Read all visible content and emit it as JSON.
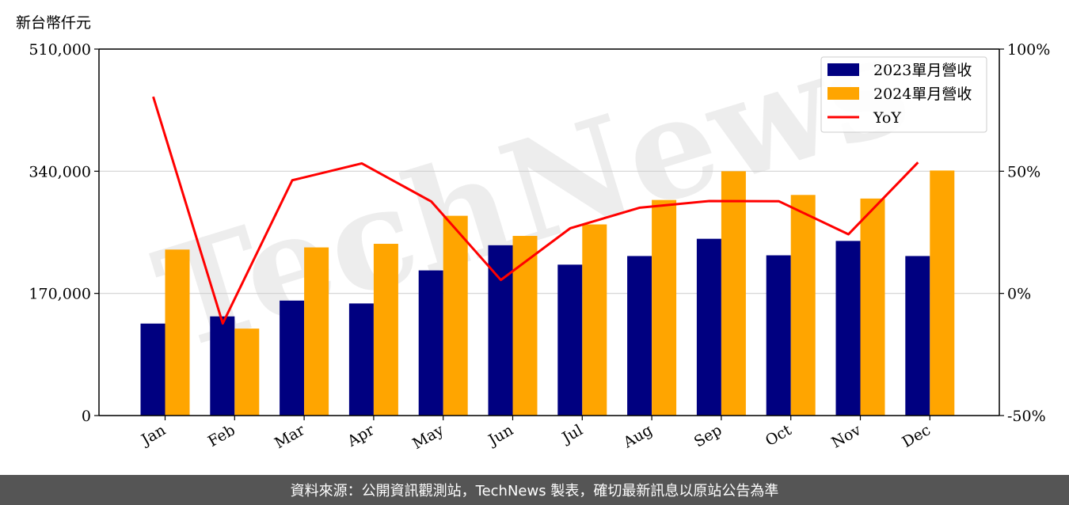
{
  "unit_label": "新台幣仟元",
  "footer_text": "資料來源：公開資訊觀測站，TechNews 製表，確切最新訊息以原站公告為準",
  "watermark": "TechNews",
  "colors": {
    "series_2023": "#000080",
    "series_2024": "#FFA500",
    "yoy": "#FF0000",
    "grid": "#d3d3d3",
    "footer_bg": "#555555"
  },
  "chart_data": {
    "type": "bar",
    "categories": [
      "Jan",
      "Feb",
      "Mar",
      "Apr",
      "May",
      "Jun",
      "Jul",
      "Aug",
      "Sep",
      "Oct",
      "Nov",
      "Dec"
    ],
    "series": [
      {
        "name": "2023單月營收",
        "type": "bar",
        "axis": "left",
        "values": [
          128000,
          138000,
          160000,
          156000,
          202000,
          237000,
          210000,
          222000,
          246000,
          223000,
          243000,
          222000
        ]
      },
      {
        "name": "2024單月營收",
        "type": "bar",
        "axis": "left",
        "values": [
          231000,
          121000,
          234000,
          239000,
          278000,
          250000,
          266000,
          300000,
          340000,
          307000,
          302000,
          341000
        ]
      },
      {
        "name": "YoY",
        "type": "line",
        "axis": "right",
        "values": [
          80.5,
          -12.3,
          46.3,
          53.2,
          37.6,
          5.5,
          26.7,
          35.1,
          37.8,
          37.7,
          24.2,
          53.6
        ]
      }
    ],
    "yaxis_left": {
      "ylim": [
        0,
        510000
      ],
      "ticks": [
        "0",
        "170,000",
        "340,000",
        "510,000"
      ],
      "tick_values": [
        0,
        170000,
        340000,
        510000
      ]
    },
    "yaxis_right": {
      "ylim": [
        -50,
        100
      ],
      "ticks": [
        "-50%",
        "0%",
        "50%",
        "100%"
      ],
      "tick_values": [
        -50,
        0,
        50,
        100
      ]
    },
    "grid": true,
    "legend_position": "top-right"
  }
}
